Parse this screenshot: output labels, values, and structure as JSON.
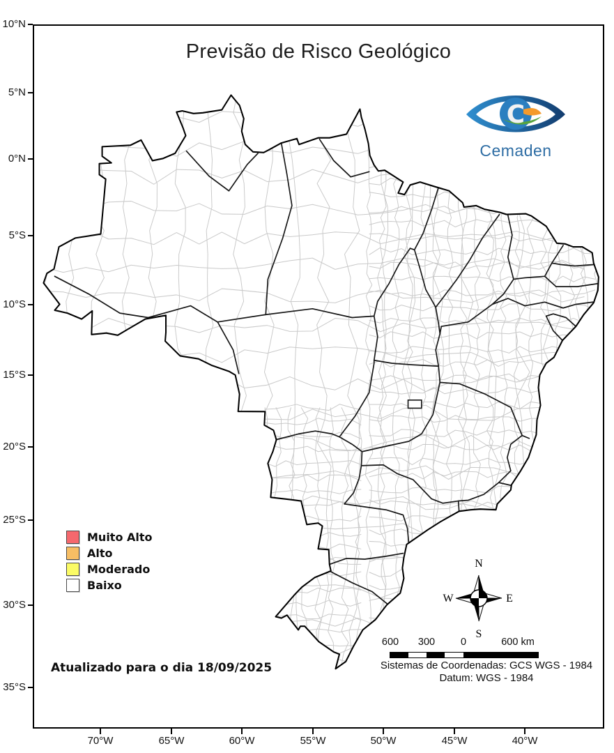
{
  "title": "Previsão de Risco Geológico",
  "logo": {
    "text": "Cemaden"
  },
  "legend": {
    "items": [
      {
        "label": "Muito Alto",
        "color": "#f5686d"
      },
      {
        "label": "Alto",
        "color": "#f7be64"
      },
      {
        "label": "Moderado",
        "color": "#fbfb65"
      },
      {
        "label": "Baixo",
        "color": "#ffffff"
      }
    ]
  },
  "footer": {
    "updated": "Atualizado para o dia 18/09/2025"
  },
  "axes": {
    "lat": [
      "10°N",
      "5°N",
      "0°N",
      "5°S",
      "10°S",
      "15°S",
      "20°S",
      "25°S",
      "30°S",
      "35°S"
    ],
    "lon": [
      "70°W",
      "65°W",
      "60°W",
      "55°W",
      "50°W",
      "45°W",
      "40°W"
    ]
  },
  "compass": {
    "n": "N",
    "e": "E",
    "s": "S",
    "w": "W"
  },
  "scalebar": {
    "labels": [
      "600",
      "300",
      "0",
      "600 km"
    ]
  },
  "crs": {
    "line1": "Sistemas de Coordenadas: GCS WGS - 1984",
    "line2": "Datum: WGS - 1984"
  }
}
